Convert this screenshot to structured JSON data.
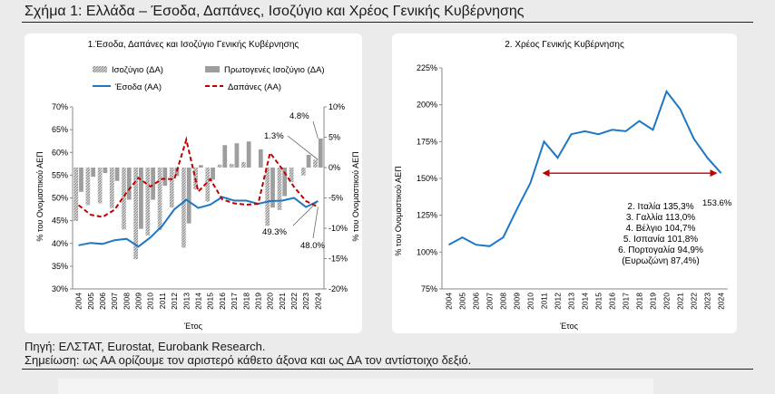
{
  "page": {
    "title": "Σχήμα 1: Ελλάδα – Έσοδα, Δαπάνες, Ισοζύγιο και Χρέος Γενικής Κυβέρνησης",
    "source": "Πηγή: ΕΛΣΤΑΤ, Eurostat, Eurobank Research.",
    "note": "Σημείωση: ως ΑΑ ορίζουμε τον αριστερό κάθετο άξονα και ως ΔΑ τον αντίστοιχο δεξιό."
  },
  "colors": {
    "revenue": "#1f77c4",
    "expenditure": "#c00000",
    "bars": "#9e9e9e",
    "debt": "#1f77c4",
    "arrow": "#c00000"
  },
  "chart_data": [
    {
      "type": "bar+line",
      "title": "1.Έσοδα, Δαπάνες και Ισοζύγιο Γενικής Κυβέρνησης",
      "xlabel": "Έτος",
      "ylabel": "% του Ονομαστικού ΑΕΠ",
      "y2label": "% του Ονομαστικού ΑΕΠ",
      "categories": [
        "2004",
        "2005",
        "2006",
        "2007",
        "2008",
        "2009",
        "2010",
        "2011",
        "2012",
        "2013",
        "2014",
        "2015",
        "2016",
        "2017",
        "2018",
        "2019",
        "2020",
        "2021",
        "2022",
        "2023",
        "2024"
      ],
      "ylim": [
        30,
        70
      ],
      "yticks": [
        "30%",
        "35%",
        "40%",
        "45%",
        "50%",
        "55%",
        "60%",
        "65%",
        "70%"
      ],
      "y2lim": [
        -20,
        10
      ],
      "y2ticks": [
        "-20%",
        "-15%",
        "-10%",
        "-5%",
        "0%",
        "5%",
        "10%"
      ],
      "legend": [
        "Ισοζύγιο (ΔΑ)",
        "Πρωτογενές Ισοζύγιο (ΔΑ)",
        "Έσοδα (ΑΑ)",
        "Δαπάνες (ΑΑ)"
      ],
      "series": [
        {
          "name": "Ισοζύγιο (ΔΑ)",
          "axis": "right",
          "kind": "bar-hatched",
          "values": [
            -8.8,
            -6.2,
            -5.9,
            -6.7,
            -10.2,
            -15.1,
            -11.2,
            -10.3,
            -6.6,
            -13.2,
            -3.6,
            -5.6,
            0.5,
            0.6,
            0.9,
            0.0,
            -9.6,
            -7.0,
            -2.4,
            -1.3,
            1.3
          ]
        },
        {
          "name": "Πρωτογενές Ισοζύγιο (ΔΑ)",
          "axis": "right",
          "kind": "bar-solid",
          "values": [
            -4.0,
            -1.5,
            -0.9,
            -2.2,
            -5.3,
            -10.1,
            -5.3,
            -3.0,
            -1.4,
            -9.2,
            0.4,
            -2.0,
            3.7,
            4.0,
            4.3,
            3.0,
            -6.6,
            -4.7,
            0.0,
            2.1,
            4.8
          ]
        },
        {
          "name": "Έσοδα (ΑΑ)",
          "axis": "left",
          "kind": "line",
          "values": [
            39.6,
            40.1,
            39.9,
            40.7,
            41.0,
            39.3,
            41.3,
            43.9,
            47.5,
            49.6,
            47.8,
            48.5,
            50.2,
            49.4,
            49.4,
            48.7,
            49.3,
            49.4,
            50.0,
            48.0,
            49.3
          ]
        },
        {
          "name": "Δαπάνες (ΑΑ)",
          "axis": "left",
          "kind": "line-dashed",
          "values": [
            48.4,
            46.3,
            45.8,
            47.4,
            51.2,
            54.4,
            52.5,
            54.2,
            54.1,
            62.8,
            51.4,
            54.1,
            49.7,
            48.8,
            48.5,
            48.7,
            59.9,
            56.4,
            52.4,
            49.3,
            48.0
          ]
        }
      ],
      "annotations": [
        "4.8%",
        "1.3%",
        "49.3%",
        "48.0%"
      ]
    },
    {
      "type": "line",
      "title": "2. Χρέος Γενικής Κυβέρνησης",
      "xlabel": "Έτος",
      "ylabel": "% του Ονομαστικού ΑΕΠ",
      "categories": [
        "2004",
        "2005",
        "2006",
        "2007",
        "2008",
        "2009",
        "2010",
        "2011",
        "2012",
        "2013",
        "2014",
        "2015",
        "2016",
        "2017",
        "2018",
        "2019",
        "2020",
        "2021",
        "2022",
        "2023",
        "2024"
      ],
      "ylim": [
        75,
        225
      ],
      "yticks": [
        "75%",
        "100%",
        "125%",
        "150%",
        "175%",
        "200%",
        "225%"
      ],
      "series": [
        {
          "name": "",
          "values": [
            105,
            110,
            105,
            104,
            110,
            129,
            147,
            175,
            164,
            180,
            182,
            180,
            183,
            182,
            189,
            183,
            209,
            197,
            177,
            164,
            153.6
          ]
        }
      ],
      "annotations": [
        "153.6%"
      ],
      "comparison_box": [
        "2. Ιταλία 135,3%",
        "3. Γαλλία 113,0%",
        "4. Βέλγιο 104,7%",
        "5. Ισπανία 101,8%",
        "6. Πορτογαλία 94,9%",
        "(Ευρωζώνη 87,4%)"
      ]
    }
  ]
}
